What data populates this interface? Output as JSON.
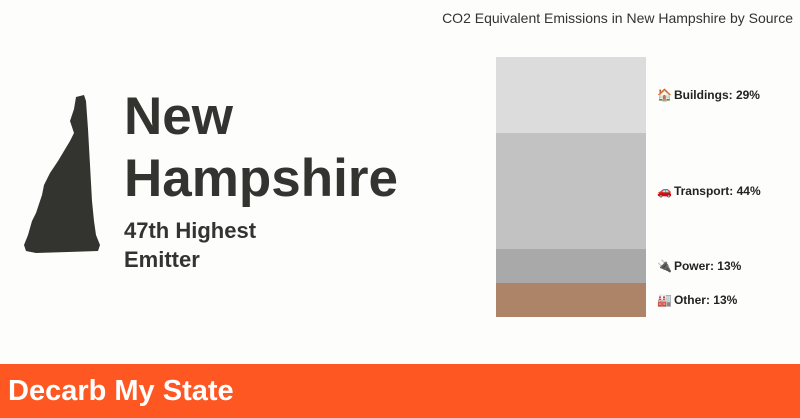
{
  "state": {
    "name_line1": "New",
    "name_line2": "Hampshire",
    "rank_line1": "47th Highest",
    "rank_line2": "Emitter"
  },
  "footer": {
    "title": "Decarb My State"
  },
  "colors": {
    "map": "#333330",
    "footer": "#fe5722"
  },
  "chart_data": {
    "type": "bar",
    "stacked": true,
    "title": "CO2 Equivalent Emissions in New Hampshire by Source",
    "xlabel": "",
    "ylabel": "",
    "ylim": [
      0,
      100
    ],
    "series": [
      {
        "name": "Buildings",
        "value": 29,
        "label": "Buildings: 29%",
        "icon": "🏠",
        "color": "#dcdcdc"
      },
      {
        "name": "Transport",
        "value": 44,
        "label": "Transport: 44%",
        "icon": "🚗",
        "color": "#c2c2c2"
      },
      {
        "name": "Power",
        "value": 13,
        "label": "Power: 13%",
        "icon": "🔌",
        "color": "#a9a9a9"
      },
      {
        "name": "Other",
        "value": 13,
        "label": "Other: 13%",
        "icon": "🏭",
        "color": "#ae8468"
      }
    ]
  }
}
